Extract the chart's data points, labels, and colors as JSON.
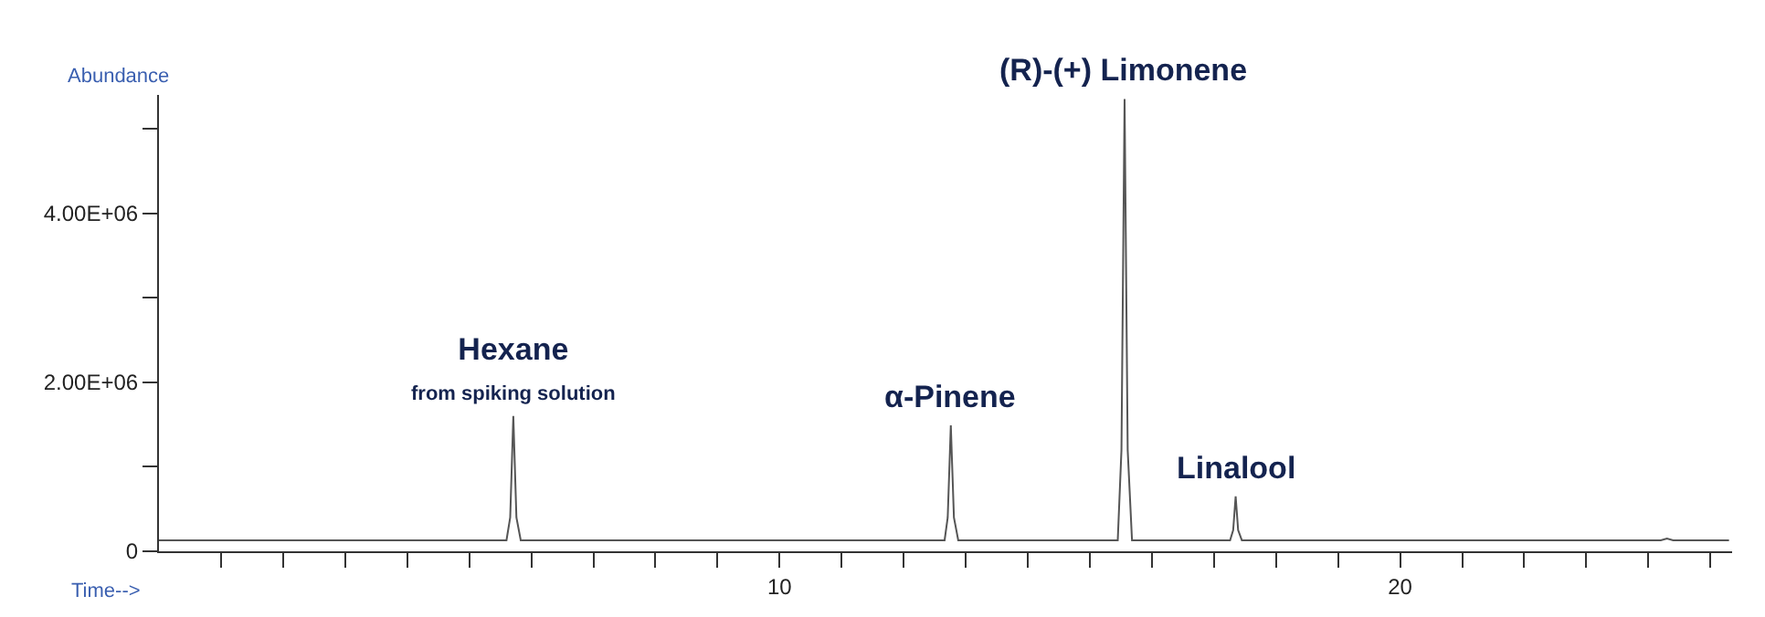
{
  "chart_data": {
    "type": "line",
    "xlabel": "Time-->",
    "ylabel": "Abundance",
    "series": [
      {
        "color": "#555555",
        "x": [
          0,
          5.6,
          5.66,
          5.71,
          5.76,
          5.83,
          12.66,
          12.71,
          12.76,
          12.81,
          12.88,
          15.45,
          15.51,
          15.56,
          15.61,
          15.68,
          17.26,
          17.31,
          17.35,
          17.39,
          17.45,
          24.2,
          24.3,
          24.4,
          25.3
        ],
        "values": [
          130000,
          130000,
          400000,
          1600000,
          400000,
          130000,
          130000,
          400000,
          1490000,
          400000,
          130000,
          130000,
          1200000,
          5350000,
          1200000,
          130000,
          130000,
          250000,
          650000,
          250000,
          130000,
          130000,
          150000,
          130000,
          130000
        ]
      }
    ],
    "annotations": [
      {
        "text": "Hexane\nfrom spiking solution",
        "x": 5.71,
        "y": 1600000
      },
      {
        "text": "α-Pinene",
        "x": 12.76,
        "y": 1490000
      },
      {
        "text": "(R)-(+) Limonene",
        "x": 15.56,
        "y": 5350000
      },
      {
        "text": "Linalool",
        "x": 17.35,
        "y": 650000
      }
    ],
    "xlim": [
      0,
      25.35
    ],
    "xticks": [
      {
        "value": 1,
        "label": null
      },
      {
        "value": 2,
        "label": null
      },
      {
        "value": 3,
        "label": null
      },
      {
        "value": 4,
        "label": null
      },
      {
        "value": 5,
        "label": null
      },
      {
        "value": 6,
        "label": null
      },
      {
        "value": 7,
        "label": null
      },
      {
        "value": 8,
        "label": null
      },
      {
        "value": 9,
        "label": null
      },
      10,
      {
        "value": 11,
        "label": null
      },
      {
        "value": 12,
        "label": null
      },
      {
        "value": 13,
        "label": null
      },
      {
        "value": 14,
        "label": null
      },
      {
        "value": 15,
        "label": null
      },
      {
        "value": 16,
        "label": null
      },
      {
        "value": 17,
        "label": null
      },
      {
        "value": 18,
        "label": null
      },
      {
        "value": 19,
        "label": null
      },
      20,
      {
        "value": 21,
        "label": null
      },
      {
        "value": 22,
        "label": null
      },
      {
        "value": 23,
        "label": null
      },
      {
        "value": 24,
        "label": null
      },
      {
        "value": 25,
        "label": null
      }
    ],
    "ylim": [
      0,
      5400000
    ],
    "yticks": [
      0,
      {
        "value": 1000000,
        "label": null
      },
      {
        "value": 2000000,
        "label": "2.00E+06"
      },
      {
        "value": 3000000,
        "label": null
      },
      {
        "value": 4000000,
        "label": "4.00E+06"
      },
      {
        "value": 5000000,
        "label": null
      }
    ],
    "grid": false,
    "marker": "none",
    "line_style": "solid"
  }
}
